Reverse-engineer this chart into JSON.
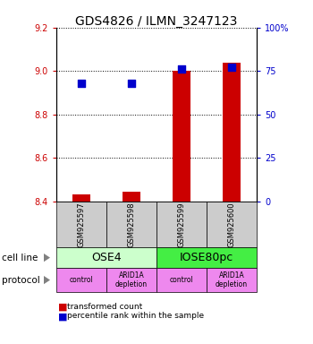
{
  "title": "GDS4826 / ILMN_3247123",
  "samples": [
    "GSM925597",
    "GSM925598",
    "GSM925599",
    "GSM925600"
  ],
  "transformed_counts": [
    8.43,
    8.445,
    9.0,
    9.04
  ],
  "percentile_ranks": [
    68,
    68,
    76,
    77
  ],
  "ylim_left": [
    8.4,
    9.2
  ],
  "ylim_right": [
    0,
    100
  ],
  "yticks_left": [
    8.4,
    8.6,
    8.8,
    9.0,
    9.2
  ],
  "yticks_right": [
    0,
    25,
    50,
    75,
    100
  ],
  "ytick_labels_right": [
    "0",
    "25",
    "50",
    "75",
    "100%"
  ],
  "bar_color": "#cc0000",
  "dot_color": "#0000cc",
  "bar_width": 0.35,
  "dot_size": 30,
  "ose4_color": "#ccffcc",
  "iose_color": "#44ee44",
  "protocol_color": "#ee88ee",
  "sample_box_color": "#cccccc",
  "left_axis_color": "#cc0000",
  "right_axis_color": "#0000cc",
  "protocol_labels": [
    "control",
    "ARID1A\ndepletion",
    "control",
    "ARID1A\ndepletion"
  ]
}
